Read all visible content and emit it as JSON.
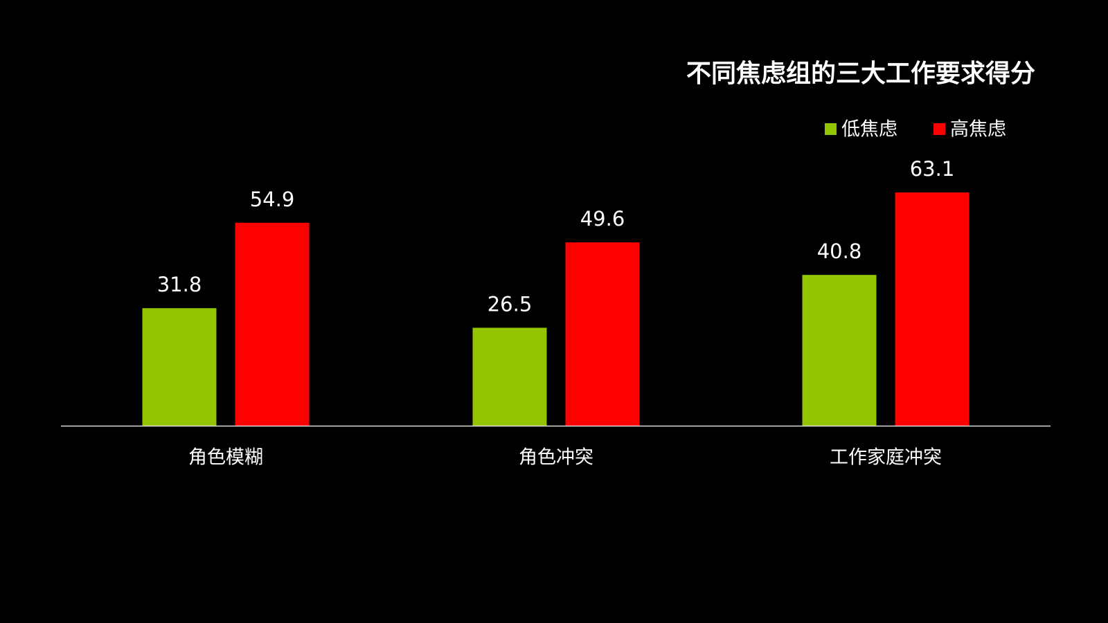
{
  "chart_data": {
    "type": "bar",
    "title": "不同焦虑组的三大工作要求得分",
    "categories": [
      "角色模糊",
      "角色冲突",
      "工作家庭冲突"
    ],
    "series": [
      {
        "name": "低焦虑",
        "color": "#92c400",
        "values": [
          31.8,
          26.5,
          40.8
        ]
      },
      {
        "name": "高焦虑",
        "color": "#ff0000",
        "values": [
          54.9,
          49.6,
          63.1
        ]
      }
    ],
    "legend": "top-right"
  }
}
